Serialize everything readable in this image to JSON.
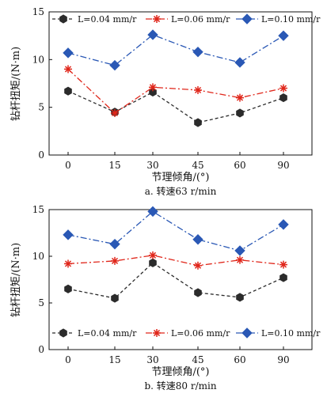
{
  "chart_data": [
    {
      "type": "line",
      "caption": "a. 转速63 r/min",
      "xlabel": "节理倾角/(°)",
      "ylabel": "钻杆扭矩/(N·m)",
      "categories": [
        "0",
        "15",
        "30",
        "45",
        "60",
        "90"
      ],
      "x": [
        0,
        15,
        30,
        45,
        60,
        90
      ],
      "ylim": [
        0,
        15
      ],
      "yticks": [
        "0",
        "5",
        "10",
        "15"
      ],
      "legend_position": "top",
      "series": [
        {
          "name": "L=0.04 mm/r",
          "values": [
            6.7,
            4.5,
            6.6,
            3.4,
            4.4,
            6.0
          ],
          "color": "#2b2b2b",
          "marker": "hexagon",
          "dash": "4 3"
        },
        {
          "name": "L=0.06 mm/r",
          "values": [
            9.0,
            4.4,
            7.1,
            6.8,
            6.0,
            7.0
          ],
          "color": "#e0261a",
          "marker": "asterisk",
          "dash": "8 3 2 3"
        },
        {
          "name": "L=0.10 mm/r",
          "values": [
            10.7,
            9.4,
            12.6,
            10.8,
            9.7,
            12.5
          ],
          "color": "#2a58b5",
          "marker": "diamond",
          "dash": "8 3 2 3"
        }
      ]
    },
    {
      "type": "line",
      "caption": "b. 转速80 r/min",
      "xlabel": "节理倾角/(°)",
      "ylabel": "钻杆扭矩/(N·m)",
      "categories": [
        "0",
        "15",
        "30",
        "45",
        "60",
        "90"
      ],
      "x": [
        0,
        15,
        30,
        45,
        60,
        90
      ],
      "ylim": [
        0,
        15
      ],
      "yticks": [
        "0",
        "5",
        "10",
        "15"
      ],
      "legend_position": "bottom",
      "series": [
        {
          "name": "L=0.04 mm/r",
          "values": [
            6.5,
            5.5,
            9.3,
            6.1,
            5.6,
            7.7
          ],
          "color": "#2b2b2b",
          "marker": "hexagon",
          "dash": "4 3"
        },
        {
          "name": "L=0.06 mm/r",
          "values": [
            9.2,
            9.5,
            10.1,
            9.0,
            9.6,
            9.1
          ],
          "color": "#e0261a",
          "marker": "asterisk",
          "dash": "8 3 2 3"
        },
        {
          "name": "L=0.10 mm/r",
          "values": [
            12.3,
            11.3,
            14.8,
            11.8,
            10.6,
            13.4
          ],
          "color": "#2a58b5",
          "marker": "diamond",
          "dash": "8 3 2 3"
        }
      ]
    }
  ]
}
